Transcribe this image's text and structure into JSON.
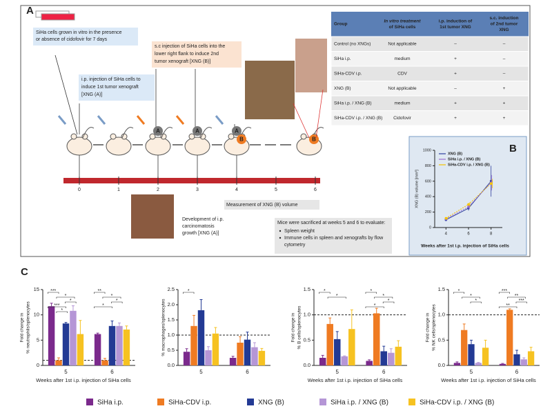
{
  "panel_a": {
    "label": "A",
    "box_culture": [
      "SiHa cells grown in vitro in the presence",
      "or absence of cidofovir for 7 days"
    ],
    "box_ip": [
      "i.p. injection of SiHa cells to",
      "induce 1st  tumor xenograft",
      "[XNG (A)]"
    ],
    "box_sc": [
      "s.c injection of SiHa cells into the",
      "lower right flank to induce 2nd",
      "tumor xenograft [XNG (B)]"
    ],
    "weeks": [
      "0",
      "1",
      "2",
      "3",
      "4",
      "5",
      "6"
    ],
    "badge_a": "A",
    "badge_b": "B",
    "measurement": "Measurement of XNG (B) volume",
    "development": [
      "Development of i.p.",
      "carcinomatosis",
      "growth [XNG (A)]"
    ],
    "sacrifice": {
      "heading": "Mice were sacrificed at weeks 5 and 6 to evaluate:",
      "bullets": [
        [
          "Spleen weight"
        ],
        [
          "Immune cells in spleen and xenografts by flow",
          "cytometry"
        ]
      ]
    },
    "table": {
      "header": [
        [
          "Group"
        ],
        [
          "In vitro treatment",
          "of SiHa cells"
        ],
        [
          "i.p. induction of",
          "1st tumor XNG"
        ],
        [
          "s.c. induction",
          "of 2nd tumor",
          "XNG"
        ]
      ],
      "rows": [
        [
          "Control (no XNGs)",
          "Not applicable",
          "–",
          "–"
        ],
        [
          "SiHa i.p.",
          "medium",
          "+",
          "–"
        ],
        [
          "SiHa-CDV i.p.",
          "CDV",
          "+",
          "–"
        ],
        [
          "XNG (B)",
          "Not applicable",
          "–",
          "+"
        ],
        [
          "SiHa i.p. / XNG (B)",
          "medium",
          "+",
          "+"
        ],
        [
          "SiHa-CDV i.p. / XNG (B)",
          "Cidofovir",
          "+",
          "+"
        ]
      ]
    }
  },
  "panel_b_label": "B",
  "panel_c": {
    "label": "C",
    "legend": [
      {
        "name": "SiHa i.p.",
        "color": "#7b2a8c"
      },
      {
        "name": "SiHa-CDV i.p.",
        "color": "#ef7b22"
      },
      {
        "name": "XNG (B)",
        "color": "#233a94"
      },
      {
        "name": "SiHa i.p. / XNG (B)",
        "color": "#b596d6"
      },
      {
        "name": "SiHa-CDV i.p. / XNG (B)",
        "color": "#f6c221"
      }
    ]
  },
  "chart_data": [
    {
      "type": "line",
      "x": [
        4,
        6,
        8
      ],
      "xlim": [
        3,
        9
      ],
      "xticks": [
        4,
        6,
        8
      ],
      "ylim": [
        0,
        1000
      ],
      "yticks": [
        0,
        200,
        400,
        600,
        800,
        1000
      ],
      "ylabel": "XNG (B) volume [mm³]",
      "xlabel": "Weeks after 1st i.p. injection of SiHa cells",
      "series": [
        {
          "name": "XNG (B)",
          "color": "#2e3f9e",
          "values": [
            100,
            250,
            600
          ],
          "errors": [
            15,
            30,
            200
          ]
        },
        {
          "name": "SiHa i.p. / XNG (B)",
          "color": "#9b6fd0",
          "values": [
            110,
            270,
            580
          ],
          "errors": [
            15,
            30,
            100
          ]
        },
        {
          "name": "SiHa-CDV i.p. / XNG (B)",
          "color": "#f5c400",
          "values": [
            120,
            300,
            570
          ],
          "errors": [
            15,
            30,
            60
          ]
        }
      ]
    },
    {
      "type": "grouped_bar",
      "categories": [
        "5",
        "6"
      ],
      "ylim": [
        0,
        15
      ],
      "yticks": [
        0,
        5,
        10,
        15
      ],
      "refline": 1,
      "ylabel": [
        "Fold change in",
        "% neutrophils/splenocytes"
      ],
      "xlabel": "Weeks after 1st i.p. injection of SiHa cells",
      "significance": [
        [
          "***",
          "*",
          "*",
          "***",
          "*"
        ],
        [
          "**",
          "*",
          "*",
          "*"
        ]
      ],
      "series": [
        {
          "values": [
            11.7,
            6.2
          ],
          "errors": [
            0.6,
            0.2
          ]
        },
        {
          "values": [
            1.0,
            1.0
          ],
          "errors": [
            0.5,
            0.4
          ]
        },
        {
          "values": [
            8.3,
            7.8
          ],
          "errors": [
            0.2,
            1.0
          ]
        },
        {
          "values": [
            10.8,
            7.8
          ],
          "errors": [
            1.0,
            0.6
          ]
        },
        {
          "values": [
            6.2,
            7.1
          ],
          "errors": [
            2.7,
            0.7
          ]
        }
      ]
    },
    {
      "type": "grouped_bar",
      "categories": [
        "5",
        "6"
      ],
      "ylim": [
        0,
        2.5
      ],
      "yticks": [
        {
          "value": 0,
          "label": "0.0"
        },
        0.5,
        {
          "value": 1,
          "label": "1.0"
        },
        1.5,
        {
          "value": 2,
          "label": "2.0"
        },
        2.5
      ],
      "refline": 1,
      "ylabel": [
        "% macrophages/splenocytes"
      ],
      "significance": [
        [
          "*"
        ],
        []
      ],
      "series": [
        {
          "values": [
            0.45,
            0.25
          ],
          "errors": [
            0.1,
            0.05
          ]
        },
        {
          "values": [
            1.3,
            0.75
          ],
          "errors": [
            0.35,
            0.2
          ]
        },
        {
          "values": [
            1.82,
            0.85
          ],
          "errors": [
            0.35,
            0.25
          ]
        },
        {
          "values": [
            0.5,
            0.6
          ],
          "errors": [
            0.12,
            0.15
          ]
        },
        {
          "values": [
            1.05,
            0.48
          ],
          "errors": [
            0.2,
            0.08
          ]
        }
      ]
    },
    {
      "type": "grouped_bar",
      "categories": [
        "5",
        "6"
      ],
      "ylim": [
        0,
        1.5
      ],
      "yticks": [
        {
          "value": 0,
          "label": "0.0"
        },
        0.5,
        {
          "value": 1,
          "label": "1.0"
        },
        1.5
      ],
      "refline": 1,
      "ylabel": [
        "Fold change in",
        "% B cells/splenocytes"
      ],
      "xlabel": "Weeks after 1st i.p. injection of SiHa cells",
      "significance": [
        [
          "*",
          "*"
        ],
        [
          "*",
          "*",
          "*",
          "*"
        ]
      ],
      "series": [
        {
          "values": [
            0.15,
            0.09
          ],
          "errors": [
            0.05,
            0.02
          ]
        },
        {
          "values": [
            0.82,
            1.03
          ],
          "errors": [
            0.12,
            0.1
          ]
        },
        {
          "values": [
            0.52,
            0.28
          ],
          "errors": [
            0.15,
            0.1
          ]
        },
        {
          "values": [
            0.18,
            0.25
          ],
          "errors": [
            0.01,
            0.08
          ]
        },
        {
          "values": [
            0.72,
            0.37
          ],
          "errors": [
            0.38,
            0.12
          ]
        }
      ]
    },
    {
      "type": "grouped_bar",
      "categories": [
        "5",
        "6"
      ],
      "ylim": [
        0,
        1.5
      ],
      "yticks": [
        {
          "value": 0,
          "label": "0.0"
        },
        0.5,
        {
          "value": 1,
          "label": "1.0"
        },
        1.5
      ],
      "refline": 1,
      "ylabel": [
        "Fold change in",
        "% NK cells/splenocytes"
      ],
      "xlabel": "Weeks after 1st i.p. injection of SiHa cells",
      "significance": [
        [
          "*",
          "*",
          "*"
        ],
        [
          "***",
          "**",
          "***",
          "**"
        ]
      ],
      "series": [
        {
          "values": [
            0.05,
            0.03
          ],
          "errors": [
            0.02,
            0.01
          ]
        },
        {
          "values": [
            0.7,
            1.1
          ],
          "errors": [
            0.12,
            0.02
          ]
        },
        {
          "values": [
            0.42,
            0.22
          ],
          "errors": [
            0.08,
            0.08
          ]
        },
        {
          "values": [
            0.05,
            0.12
          ],
          "errors": [
            0.01,
            0.03
          ]
        },
        {
          "values": [
            0.35,
            0.28
          ],
          "errors": [
            0.15,
            0.08
          ]
        }
      ]
    }
  ]
}
